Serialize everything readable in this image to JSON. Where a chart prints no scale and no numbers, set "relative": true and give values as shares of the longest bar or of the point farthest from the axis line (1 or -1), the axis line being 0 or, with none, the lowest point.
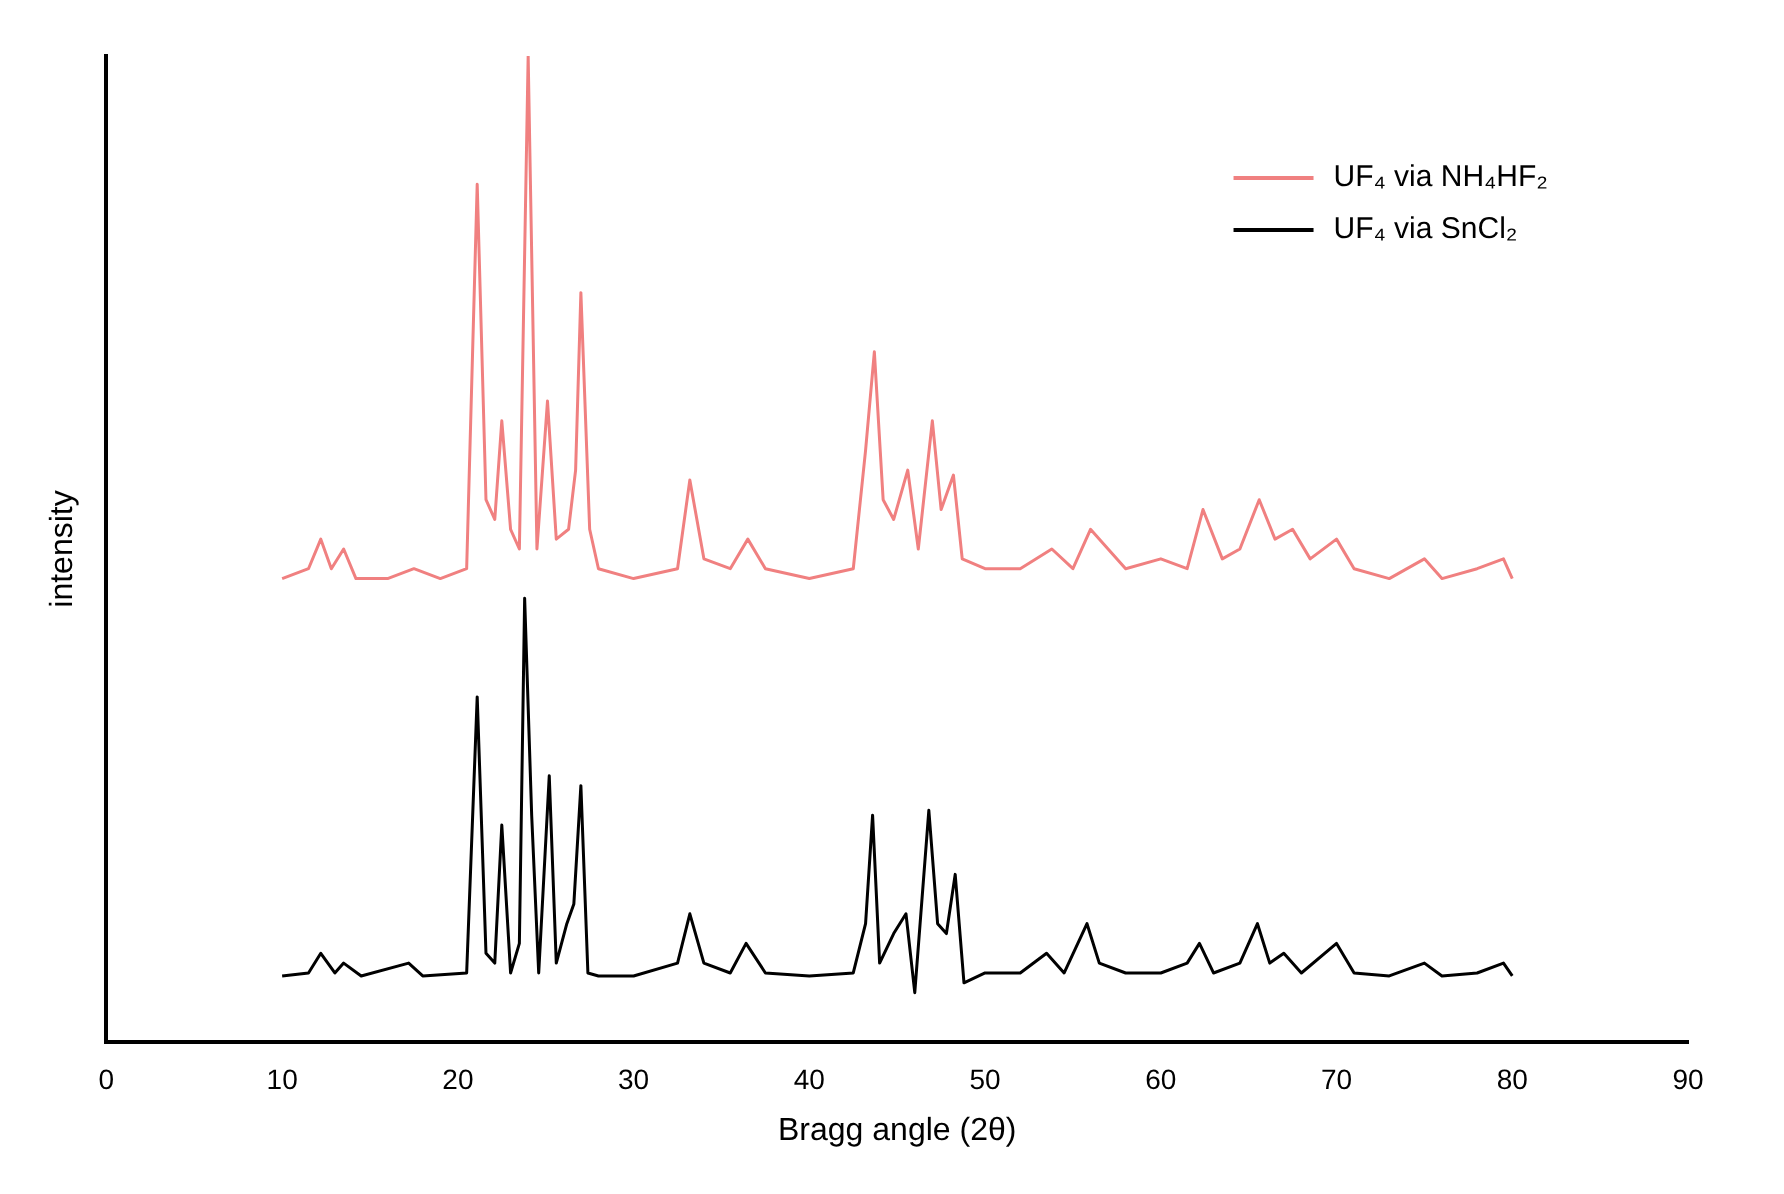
{
  "chart_data": {
    "type": "line",
    "relative": true,
    "xlabel": "Bragg angle (2θ)",
    "ylabel": "intensity",
    "xlim": [
      0,
      90
    ],
    "xticks": [
      0,
      10,
      20,
      30,
      40,
      50,
      60,
      70,
      80,
      90
    ],
    "legend": "top right",
    "grid": false,
    "marker": "none",
    "line_style": "solid",
    "series": [
      {
        "name": "UF₄ via NH₄HF₂",
        "color": "#f08080",
        "x": [
          10,
          11.5,
          12.2,
          12.8,
          13.5,
          14.2,
          16,
          17.5,
          19,
          20.5,
          21.1,
          21.6,
          22.1,
          22.5,
          23.0,
          23.5,
          24.0,
          24.5,
          25.1,
          25.6,
          26.3,
          26.7,
          27.0,
          27.5,
          28,
          30,
          32.5,
          33.2,
          34,
          35.5,
          36.5,
          37.5,
          40,
          42.5,
          43.2,
          43.7,
          44.2,
          44.8,
          45.6,
          46.2,
          47.0,
          47.5,
          48.2,
          48.7,
          50,
          52,
          53.8,
          55,
          56,
          57,
          58,
          60,
          61.5,
          62.4,
          63.5,
          64.5,
          65.6,
          66.5,
          67.5,
          68.5,
          70,
          71,
          73,
          75,
          76,
          78,
          79.5,
          80
        ],
        "values": [
          0.47,
          0.48,
          0.51,
          0.48,
          0.5,
          0.47,
          0.47,
          0.48,
          0.47,
          0.48,
          0.87,
          0.55,
          0.53,
          0.63,
          0.52,
          0.5,
          1.0,
          0.5,
          0.65,
          0.51,
          0.52,
          0.58,
          0.76,
          0.52,
          0.48,
          0.47,
          0.48,
          0.57,
          0.49,
          0.48,
          0.51,
          0.48,
          0.47,
          0.48,
          0.6,
          0.7,
          0.55,
          0.53,
          0.58,
          0.5,
          0.63,
          0.54,
          0.575,
          0.49,
          0.48,
          0.48,
          0.5,
          0.48,
          0.52,
          0.5,
          0.48,
          0.49,
          0.48,
          0.54,
          0.49,
          0.5,
          0.55,
          0.51,
          0.52,
          0.49,
          0.51,
          0.48,
          0.47,
          0.49,
          0.47,
          0.48,
          0.49,
          0.47
        ]
      },
      {
        "name": "UF₄ via SnCl₂",
        "color": "#000000",
        "x": [
          10,
          11.5,
          12.2,
          13,
          13.5,
          14.5,
          17.2,
          18,
          20.5,
          21.1,
          21.6,
          22.1,
          22.5,
          23.0,
          23.5,
          23.8,
          24.2,
          24.6,
          25.2,
          25.6,
          26.2,
          26.6,
          27.0,
          27.4,
          28,
          30,
          32.5,
          33.2,
          34,
          35.5,
          36.4,
          37.5,
          40,
          42.5,
          43.2,
          43.6,
          44.0,
          44.8,
          45.5,
          46.0,
          46.8,
          47.3,
          47.8,
          48.3,
          48.8,
          50,
          52,
          53.5,
          54.5,
          55.8,
          56.5,
          58,
          60,
          61.5,
          62.2,
          63,
          64.5,
          65.5,
          66.2,
          67,
          68,
          70,
          71,
          73,
          75,
          76,
          78,
          79.5,
          80
        ],
        "values": [
          0.067,
          0.07,
          0.09,
          0.07,
          0.08,
          0.067,
          0.08,
          0.067,
          0.07,
          0.35,
          0.09,
          0.08,
          0.22,
          0.07,
          0.1,
          0.45,
          0.23,
          0.07,
          0.27,
          0.08,
          0.12,
          0.14,
          0.26,
          0.07,
          0.067,
          0.067,
          0.08,
          0.13,
          0.08,
          0.07,
          0.1,
          0.07,
          0.067,
          0.07,
          0.12,
          0.23,
          0.08,
          0.11,
          0.13,
          0.05,
          0.235,
          0.12,
          0.11,
          0.17,
          0.06,
          0.07,
          0.07,
          0.09,
          0.07,
          0.12,
          0.08,
          0.07,
          0.07,
          0.08,
          0.1,
          0.07,
          0.08,
          0.12,
          0.08,
          0.09,
          0.07,
          0.1,
          0.07,
          0.067,
          0.08,
          0.067,
          0.07,
          0.08,
          0.067
        ]
      }
    ]
  }
}
